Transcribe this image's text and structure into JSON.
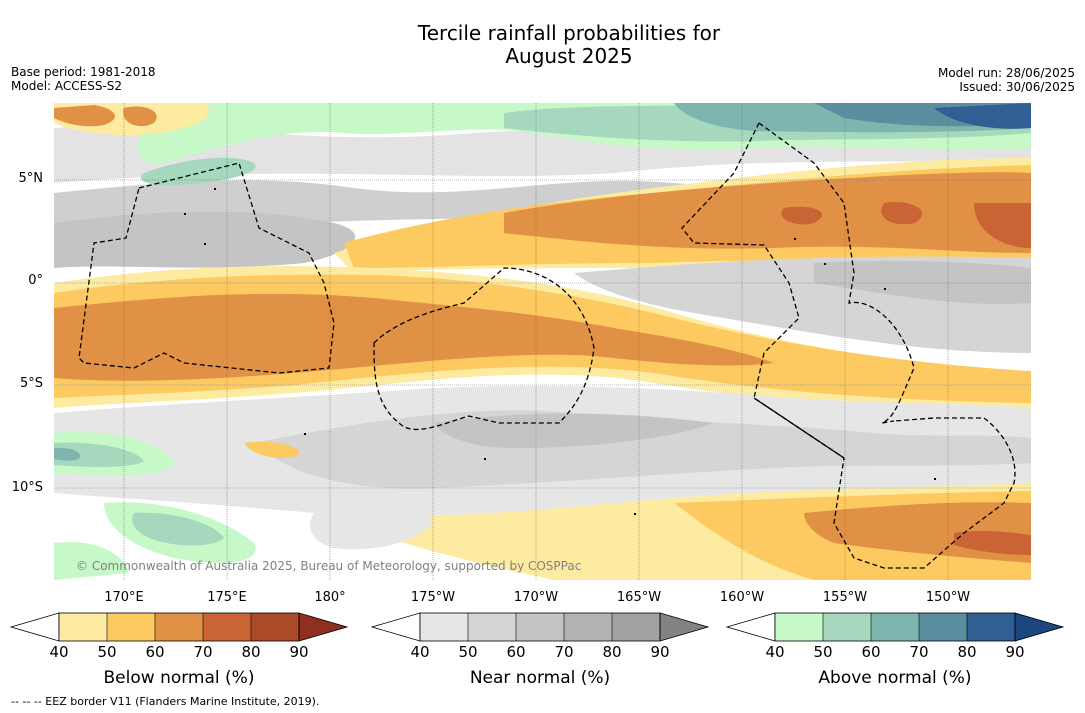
{
  "title_line1": "Tercile rainfall probabilities for",
  "title_line2": "August 2025",
  "meta_left": [
    "Base period: 1981-2018",
    "Model: ACCESS-S2"
  ],
  "meta_right": [
    "Model run: 28/06/2025",
    "Issued: 30/06/2025"
  ],
  "credit": "© Commonwealth of Australia 2025, Bureau of Meteorology, supported by COSPPac",
  "footnote": "--  --  -- EEZ border V11 (Flanders Marine Institute, 2019).",
  "lat_labels": [
    "5°N",
    "0°",
    "5°S",
    "10°S"
  ],
  "lon_labels": [
    "170°E",
    "175°E",
    "180°",
    "175°W",
    "170°W",
    "165°W",
    "160°W",
    "155°W",
    "150°W"
  ],
  "colorbars": [
    {
      "title": "Below normal (%)",
      "ticks": [
        "40",
        "50",
        "60",
        "70",
        "80",
        "90"
      ],
      "colors": [
        "#ffffff",
        "#feeba2",
        "#fdca62",
        "#e09146",
        "#cb6434",
        "#ac4b2a",
        "#8e2f1f"
      ]
    },
    {
      "title": "Near normal (%)",
      "ticks": [
        "40",
        "50",
        "60",
        "70",
        "80",
        "90"
      ],
      "colors": [
        "#ffffff",
        "#e6e6e6",
        "#d5d5d5",
        "#c4c4c4",
        "#b3b3b3",
        "#a2a2a2",
        "#828282"
      ]
    },
    {
      "title": "Above normal (%)",
      "ticks": [
        "40",
        "50",
        "60",
        "70",
        "80",
        "90"
      ],
      "colors": [
        "#ffffff",
        "#c6f8c8",
        "#a5d8bd",
        "#7fb5af",
        "#5a8fa0",
        "#2f5f93",
        "#1b467f"
      ]
    }
  ]
}
